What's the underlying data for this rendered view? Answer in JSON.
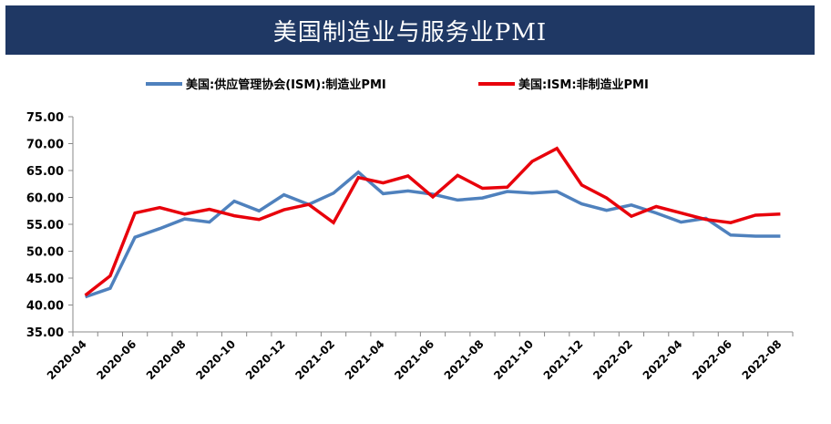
{
  "header": {
    "title": "美国制造业与服务业PMI"
  },
  "chart_data": {
    "type": "line",
    "title": "美国制造业与服务业PMI",
    "xlabel": "",
    "ylabel": "",
    "ylim": [
      35,
      75
    ],
    "y_ticks": [
      "35.00",
      "40.00",
      "45.00",
      "50.00",
      "55.00",
      "60.00",
      "65.00",
      "70.00",
      "75.00"
    ],
    "x_ticks": [
      "2020-04",
      "2020-06",
      "2020-08",
      "2020-10",
      "2020-12",
      "2021-02",
      "2021-04",
      "2021-06",
      "2021-08",
      "2021-10",
      "2021-12",
      "2022-02",
      "2022-04",
      "2022-06",
      "2022-08"
    ],
    "x": [
      "2020-04",
      "2020-05",
      "2020-06",
      "2020-07",
      "2020-08",
      "2020-09",
      "2020-10",
      "2020-11",
      "2020-12",
      "2021-01",
      "2021-02",
      "2021-03",
      "2021-04",
      "2021-05",
      "2021-06",
      "2021-07",
      "2021-08",
      "2021-09",
      "2021-10",
      "2021-11",
      "2021-12",
      "2022-01",
      "2022-02",
      "2022-03",
      "2022-04",
      "2022-05",
      "2022-06",
      "2022-07",
      "2022-08"
    ],
    "grid": false,
    "legend_position": "top",
    "series": [
      {
        "name": "美国:供应管理协会(ISM):制造业PMI",
        "color": "#4f81bd",
        "values": [
          41.5,
          43.1,
          52.6,
          54.2,
          56.0,
          55.4,
          59.3,
          57.5,
          60.5,
          58.7,
          60.8,
          64.7,
          60.7,
          61.2,
          60.6,
          59.5,
          59.9,
          61.1,
          60.8,
          61.1,
          58.8,
          57.6,
          58.6,
          57.1,
          55.4,
          56.1,
          53.0,
          52.8,
          52.8
        ]
      },
      {
        "name": "美国:ISM:非制造业PMI",
        "color": "#e8000b",
        "values": [
          41.8,
          45.4,
          57.1,
          58.1,
          56.9,
          57.8,
          56.6,
          55.9,
          57.7,
          58.7,
          55.3,
          63.7,
          62.7,
          64.0,
          60.1,
          64.1,
          61.7,
          61.9,
          66.7,
          69.1,
          62.3,
          59.9,
          56.5,
          58.3,
          57.1,
          55.9,
          55.3,
          56.7,
          56.9
        ]
      }
    ]
  }
}
